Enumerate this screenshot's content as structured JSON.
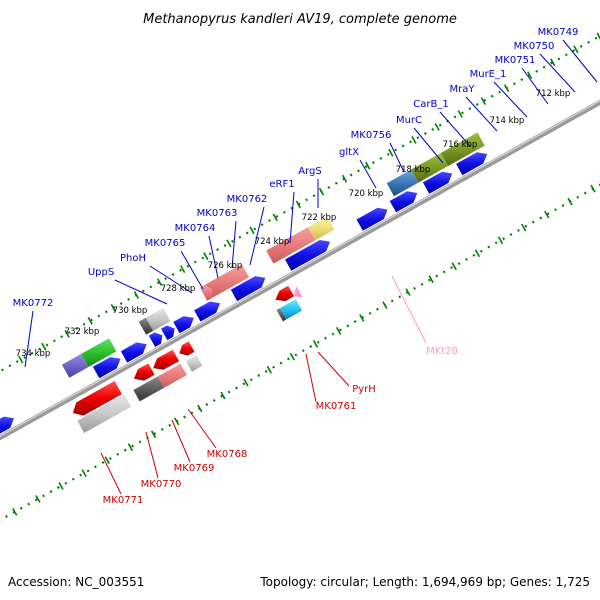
{
  "title": "Methanopyrus kandleri AV19, complete genome",
  "footer": {
    "accession": "Accession: NC_003551",
    "topology": "Topology: circular; Length: 1,694,969 bp; Genes: 1,725"
  },
  "ticks": [
    "712 kbp",
    "714 kbp",
    "716 kbp",
    "718 kbp",
    "720 kbp",
    "722 kbp",
    "724 kbp",
    "726 kbp",
    "728 kbp",
    "730 kbp",
    "732 kbp",
    "734 kbp"
  ],
  "upper_labels": [
    "MK0749",
    "MK0750",
    "MK0751",
    "MurE_1",
    "MraY",
    "CarB_1",
    "MurC",
    "MK0756",
    "gltX",
    "ArgS",
    "eRF1",
    "MK0762",
    "MK0763",
    "MK0764",
    "MK0765",
    "PhoH",
    "UppS",
    "MK0772"
  ],
  "lower_labels": [
    "PyrH",
    "MK0761",
    "MK0768",
    "MK0769",
    "MK0770",
    "MK0771"
  ],
  "pink_labels": [
    "MKt20"
  ],
  "colors": {
    "upper": "#0000cc",
    "lower": "#cc0000",
    "forward_gene": "#1010e6",
    "reverse_gene": "#ee0000",
    "grid": "#008000",
    "backbone": "#808080"
  }
}
